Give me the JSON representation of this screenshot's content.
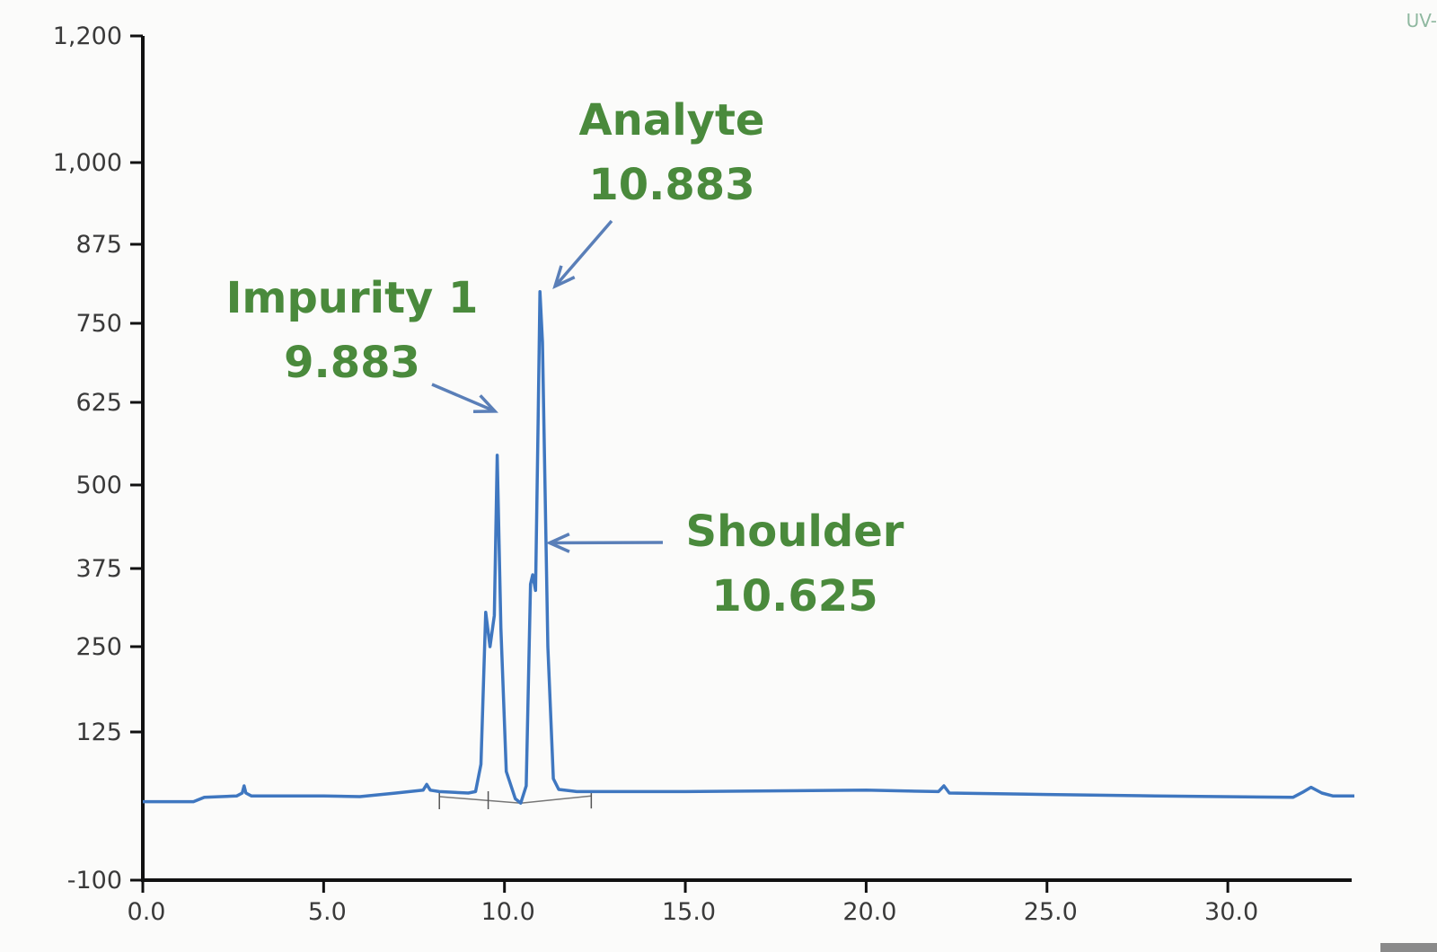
{
  "chart_data": {
    "type": "line",
    "title": "",
    "xlabel": "",
    "ylabel": "",
    "xlim": [
      0,
      33.5
    ],
    "ylim": [
      -100,
      1200
    ],
    "x_ticks": [
      "0.0",
      "5.0",
      "10.0",
      "15.0",
      "20.0",
      "25.0",
      "30.0"
    ],
    "y_ticks": [
      "-100",
      "125",
      "250",
      "375",
      "500",
      "625",
      "750",
      "875",
      "1,000",
      "1,200"
    ],
    "series": [
      {
        "color": "#3f77c0",
        "points": [
          [
            0.0,
            28
          ],
          [
            1.4,
            28
          ],
          [
            1.7,
            34
          ],
          [
            2.6,
            36
          ],
          [
            2.75,
            40
          ],
          [
            2.8,
            50
          ],
          [
            2.85,
            40
          ],
          [
            3.0,
            36
          ],
          [
            5.0,
            36
          ],
          [
            6.0,
            35
          ],
          [
            7.0,
            40
          ],
          [
            7.75,
            44
          ],
          [
            7.85,
            52
          ],
          [
            7.95,
            44
          ],
          [
            8.2,
            42
          ],
          [
            9.0,
            40
          ],
          [
            9.2,
            42
          ],
          [
            9.35,
            80
          ],
          [
            9.48,
            305
          ],
          [
            9.6,
            250
          ],
          [
            9.72,
            300
          ],
          [
            9.8,
            545
          ],
          [
            9.9,
            280
          ],
          [
            10.05,
            70
          ],
          [
            10.3,
            32
          ],
          [
            10.45,
            26
          ],
          [
            10.6,
            50
          ],
          [
            10.72,
            350
          ],
          [
            10.78,
            365
          ],
          [
            10.86,
            340
          ],
          [
            10.93,
            600
          ],
          [
            10.98,
            800
          ],
          [
            11.05,
            720
          ],
          [
            11.2,
            250
          ],
          [
            11.35,
            60
          ],
          [
            11.5,
            45
          ],
          [
            12.0,
            42
          ],
          [
            15.0,
            42
          ],
          [
            20.0,
            44
          ],
          [
            22.0,
            42
          ],
          [
            22.15,
            50
          ],
          [
            22.3,
            40
          ],
          [
            25.0,
            38
          ],
          [
            28.0,
            36
          ],
          [
            31.8,
            34
          ],
          [
            32.1,
            42
          ],
          [
            32.3,
            48
          ],
          [
            32.6,
            40
          ],
          [
            32.9,
            36
          ],
          [
            33.5,
            36
          ]
        ]
      }
    ],
    "integration_baseline": [
      [
        8.2,
        35
      ],
      [
        10.45,
        26
      ],
      [
        12.4,
        36
      ]
    ],
    "baseline_ticks": [
      [
        8.2,
        35
      ],
      [
        9.55,
        35
      ],
      [
        12.4,
        36
      ]
    ],
    "annotations": [
      {
        "lines": [
          "Analyte",
          "10.883"
        ],
        "x": 10.98,
        "y": 800,
        "color": "#4a8a3c"
      },
      {
        "lines": [
          "Impurity 1",
          "9.883"
        ],
        "x": 9.8,
        "y": 545,
        "color": "#4a8a3c"
      },
      {
        "lines": [
          "Shoulder",
          "10.625"
        ],
        "x": 11.1,
        "y": 420,
        "color": "#4a8a3c"
      }
    ],
    "legend": "none",
    "grid": false,
    "corner_tag": "UV-"
  }
}
